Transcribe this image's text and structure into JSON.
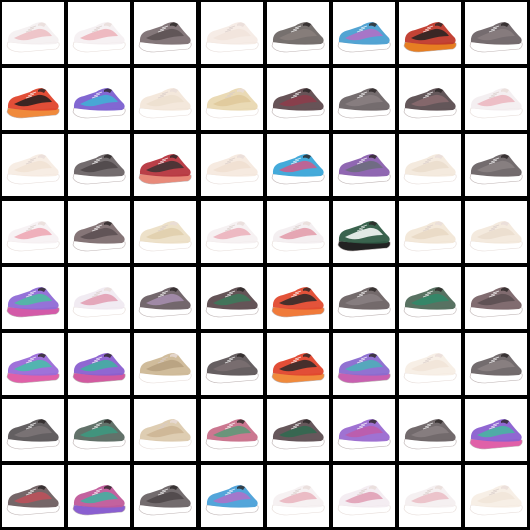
{
  "grid": {
    "rows": 8,
    "cols": 8,
    "background": "#000000",
    "cells": [
      [
        {
          "style": "white",
          "c1": "#f3eef0",
          "c2": "#e8a0a8",
          "c3": "#ffffff"
        },
        {
          "style": "white",
          "c1": "#f4eff1",
          "c2": "#e78c98",
          "c3": "#ffffff"
        },
        {
          "style": "dark",
          "c1": "#7d7073",
          "c2": "#5a5052",
          "c3": "#ffffff"
        },
        {
          "style": "cream",
          "c1": "#f4e9e2",
          "c2": "#efe0d6",
          "c3": "#ffffff"
        },
        {
          "style": "dark",
          "c1": "#6f6866",
          "c2": "#8a7f7c",
          "c3": "#ffffff"
        },
        {
          "style": "blue",
          "c1": "#4a9fd1",
          "c2": "#b66fc4",
          "c3": "#ffffff"
        },
        {
          "style": "red",
          "c1": "#c0392b",
          "c2": "#222222",
          "c3": "#e67e22"
        },
        {
          "style": "dark",
          "c1": "#6e6467",
          "c2": "#8a7e80",
          "c3": "#ffffff"
        }
      ],
      [
        {
          "style": "red",
          "c1": "#e0452c",
          "c2": "#1e1e1e",
          "c3": "#f08a3c"
        },
        {
          "style": "blue",
          "c1": "#7b5fd0",
          "c2": "#3fb3d6",
          "c3": "#ffffff"
        },
        {
          "style": "cream",
          "c1": "#f2e4d6",
          "c2": "#eadac8",
          "c3": "#ffffff"
        },
        {
          "style": "tan",
          "c1": "#e6d3a8",
          "c2": "#d9c08a",
          "c3": "#ffffff"
        },
        {
          "style": "dark",
          "c1": "#5f4a4e",
          "c2": "#8e3c4a",
          "c3": "#ffffff"
        },
        {
          "style": "dark",
          "c1": "#6d6466",
          "c2": "#8b8082",
          "c3": "#ffffff"
        },
        {
          "style": "dark",
          "c1": "#5b4d50",
          "c2": "#8a6a6e",
          "c3": "#ffffff"
        },
        {
          "style": "white",
          "c1": "#f2ecee",
          "c2": "#e795a3",
          "c3": "#ffffff"
        }
      ],
      [
        {
          "style": "cream",
          "c1": "#f6eadf",
          "c2": "#efdccb",
          "c3": "#ffffff"
        },
        {
          "style": "dark",
          "c1": "#6b6466",
          "c2": "#4e4749",
          "c3": "#ffffff"
        },
        {
          "style": "red",
          "c1": "#b6353e",
          "c2": "#3a3334",
          "c3": "#e88a7a"
        },
        {
          "style": "cream",
          "c1": "#f5e6da",
          "c2": "#ecd8c8",
          "c3": "#ffffff"
        },
        {
          "style": "blue",
          "c1": "#3aa5d8",
          "c2": "#d05a8a",
          "c3": "#ffffff"
        },
        {
          "style": "purple",
          "c1": "#8a5fae",
          "c2": "#6b6d7a",
          "c3": "#ffffff"
        },
        {
          "style": "cream",
          "c1": "#f2e6d8",
          "c2": "#e6d6c2",
          "c3": "#ffffff"
        },
        {
          "style": "dark",
          "c1": "#6b6466",
          "c2": "#8b8284",
          "c3": "#ffffff"
        }
      ],
      [
        {
          "style": "white",
          "c1": "#f6f0f2",
          "c2": "#ea7a8c",
          "c3": "#ffffff"
        },
        {
          "style": "dark",
          "c1": "#7e6e70",
          "c2": "#5b4f51",
          "c3": "#ffffff"
        },
        {
          "style": "tan",
          "c1": "#eadcc0",
          "c2": "#d8c49a",
          "c3": "#ffffff"
        },
        {
          "style": "white",
          "c1": "#f4eef0",
          "c2": "#e58a9a",
          "c3": "#ffffff"
        },
        {
          "style": "white",
          "c1": "#f2ecee",
          "c2": "#d86a80",
          "c3": "#ffffff"
        },
        {
          "style": "green",
          "c1": "#2f5b45",
          "c2": "#ffffff",
          "c3": "#222222"
        },
        {
          "style": "cream",
          "c1": "#f1e4d2",
          "c2": "#e2d0b8",
          "c3": "#ffffff"
        },
        {
          "style": "cream",
          "c1": "#f2e6d8",
          "c2": "#e6d6c4",
          "c3": "#ffffff"
        }
      ],
      [
        {
          "style": "purple",
          "c1": "#8f6ad6",
          "c2": "#4bc0a0",
          "c3": "#d35aa8"
        },
        {
          "style": "white",
          "c1": "#efe8f0",
          "c2": "#d86f8c",
          "c3": "#ffffff"
        },
        {
          "style": "dark",
          "c1": "#6c5f64",
          "c2": "#a88fb0",
          "c3": "#ffffff"
        },
        {
          "style": "dark",
          "c1": "#5c4b4e",
          "c2": "#3c7a5a",
          "c3": "#ffffff"
        },
        {
          "style": "red",
          "c1": "#e14a2f",
          "c2": "#2a2a2a",
          "c3": "#f07a3a"
        },
        {
          "style": "dark",
          "c1": "#6b6263",
          "c2": "#8a8082",
          "c3": "#ffffff"
        },
        {
          "style": "green",
          "c1": "#4f6a5a",
          "c2": "#2f8a6a",
          "c3": "#ffffff"
        },
        {
          "style": "dark",
          "c1": "#7a6468",
          "c2": "#5b4e50",
          "c3": "#ffffff"
        }
      ],
      [
        {
          "style": "purple",
          "c1": "#9a6ad8",
          "c2": "#45c0a8",
          "c3": "#e060a8"
        },
        {
          "style": "purple",
          "c1": "#8a5fd0",
          "c2": "#3fb3a0",
          "c3": "#d25aa0"
        },
        {
          "style": "tan",
          "c1": "#c8b08a",
          "c2": "#a89070",
          "c3": "#ffffff"
        },
        {
          "style": "dark",
          "c1": "#5e5658",
          "c2": "#7b7072",
          "c3": "#ffffff"
        },
        {
          "style": "red",
          "c1": "#e0452c",
          "c2": "#2a2a2a",
          "c3": "#f08a3c"
        },
        {
          "style": "purple",
          "c1": "#8a6ad0",
          "c2": "#4cb0b8",
          "c3": "#c860b0"
        },
        {
          "style": "cream",
          "c1": "#f6ece2",
          "c2": "#eedfd0",
          "c3": "#ffffff"
        },
        {
          "style": "dark",
          "c1": "#6c6466",
          "c2": "#8c8284",
          "c3": "#ffffff"
        }
      ],
      [
        {
          "style": "dark",
          "c1": "#5b5658",
          "c2": "#7c7678",
          "c3": "#ffffff"
        },
        {
          "style": "green",
          "c1": "#5a6a62",
          "c2": "#3c9a80",
          "c3": "#ffffff"
        },
        {
          "style": "tan",
          "c1": "#d8c4a4",
          "c2": "#c2a884",
          "c3": "#ffffff"
        },
        {
          "style": "purple",
          "c1": "#c8708a",
          "c2": "#5a9a78",
          "c3": "#ffffff"
        },
        {
          "style": "dark",
          "c1": "#5e4e52",
          "c2": "#2f6a50",
          "c3": "#ffffff"
        },
        {
          "style": "purple",
          "c1": "#9a6ad0",
          "c2": "#c05aa8",
          "c3": "#ffffff"
        },
        {
          "style": "dark",
          "c1": "#6a6264",
          "c2": "#8a8082",
          "c3": "#ffffff"
        },
        {
          "style": "purple",
          "c1": "#8a5fd0",
          "c2": "#45b8a0",
          "c3": "#e060a8"
        }
      ],
      [
        {
          "style": "dark",
          "c1": "#6e5e60",
          "c2": "#c0505a",
          "c3": "#ffffff"
        },
        {
          "style": "purple",
          "c1": "#c05a9a",
          "c2": "#3fb3a0",
          "c3": "#8a5fd0"
        },
        {
          "style": "dark",
          "c1": "#6c6466",
          "c2": "#4e4749",
          "c3": "#ffffff"
        },
        {
          "style": "blue",
          "c1": "#4aa0d8",
          "c2": "#b070c8",
          "c3": "#ffffff"
        },
        {
          "style": "white",
          "c1": "#f4eef0",
          "c2": "#e28fa0",
          "c3": "#ffffff"
        },
        {
          "style": "white",
          "c1": "#f2eaf0",
          "c2": "#d66f90",
          "c3": "#ffffff"
        },
        {
          "style": "white",
          "c1": "#f3edef",
          "c2": "#e4a0ac",
          "c3": "#ffffff"
        },
        {
          "style": "cream",
          "c1": "#f6ece2",
          "c2": "#efe0d2",
          "c3": "#ffffff"
        }
      ]
    ]
  }
}
